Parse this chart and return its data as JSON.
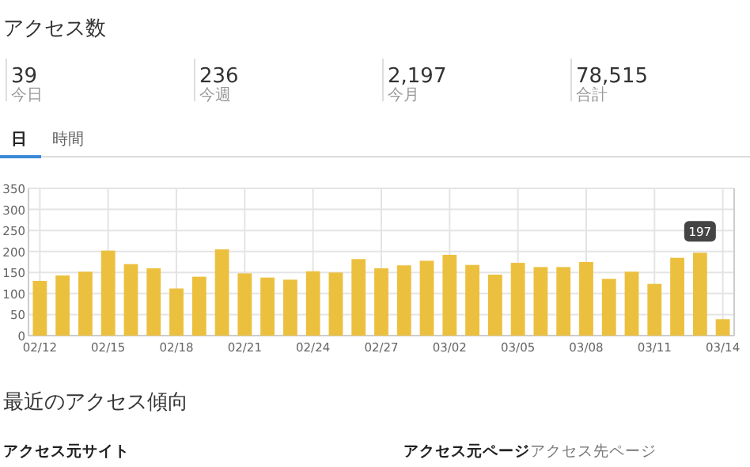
{
  "chart_data": [
    {
      "type": "other",
      "title": "アクセス数",
      "annotations": [
        "39",
        "今日",
        "236",
        "今週",
        "2,197",
        "今月",
        "78,515",
        "合計",
        "日",
        "時間"
      ]
    },
    {
      "type": "bar",
      "categories": [
        "02/12",
        null,
        null,
        "02/15",
        null,
        null,
        "02/18",
        null,
        null,
        "02/21",
        null,
        null,
        "02/24",
        null,
        null,
        "02/27",
        null,
        null,
        "03/02",
        null,
        null,
        "03/05",
        null,
        null,
        "03/08",
        null,
        null,
        "03/11",
        null,
        null,
        "03/14"
      ],
      "values": [
        130,
        143,
        152,
        202,
        170,
        160,
        112,
        140,
        205,
        148,
        138,
        133,
        153,
        150,
        182,
        160,
        167,
        178,
        192,
        168,
        145,
        173,
        163,
        163,
        175,
        135,
        152,
        123,
        185,
        197,
        39
      ],
      "value_labels": [
        null,
        null,
        null,
        null,
        null,
        null,
        null,
        null,
        null,
        null,
        null,
        null,
        null,
        null,
        null,
        null,
        null,
        null,
        null,
        null,
        null,
        null,
        null,
        null,
        null,
        null,
        null,
        null,
        null,
        "197",
        null
      ],
      "color": "#ecc03f",
      "ylim": [
        0,
        350
      ],
      "yticks": [
        0,
        50,
        100,
        150,
        200,
        250,
        300,
        350
      ],
      "grid": true
    },
    {
      "type": "other",
      "title": "最近のアクセス傾向",
      "annotations": [
        "アクセス元サイト",
        "アクセス元ページ",
        "アクセス先ページ"
      ]
    }
  ]
}
